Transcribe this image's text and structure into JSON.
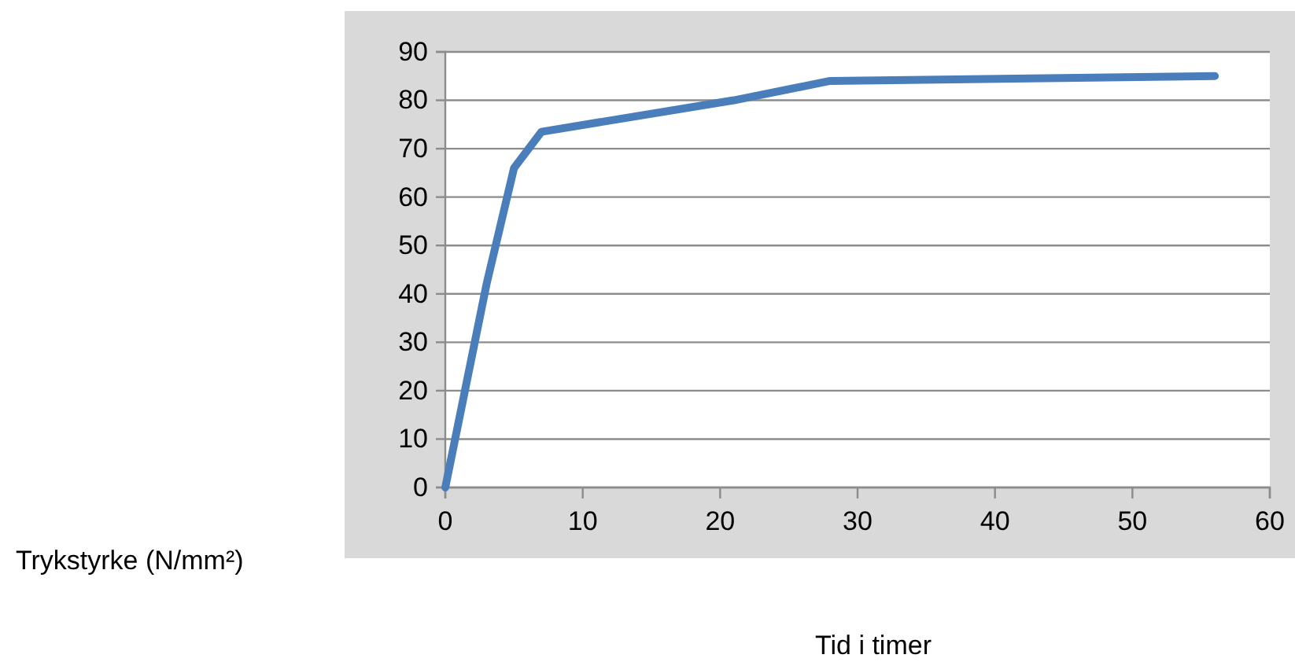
{
  "chart_data": {
    "type": "line",
    "xlabel": "Tid i timer",
    "annotations": [
      "Trykstyrke (N/mm²)"
    ],
    "x": [
      0,
      3,
      5,
      7,
      21,
      28,
      56
    ],
    "series": [
      {
        "color": "#4a7ebb",
        "values": [
          0,
          42,
          66,
          73.5,
          80,
          84,
          85
        ]
      }
    ],
    "xlim": [
      0,
      60
    ],
    "xticks": [
      0,
      10,
      20,
      30,
      40,
      50,
      60
    ],
    "ylim": [
      0,
      90
    ],
    "yticks": [
      0,
      10,
      20,
      30,
      40,
      50,
      60,
      70,
      80,
      90
    ],
    "grid": "y",
    "marker": "none",
    "line_style": "solid"
  }
}
